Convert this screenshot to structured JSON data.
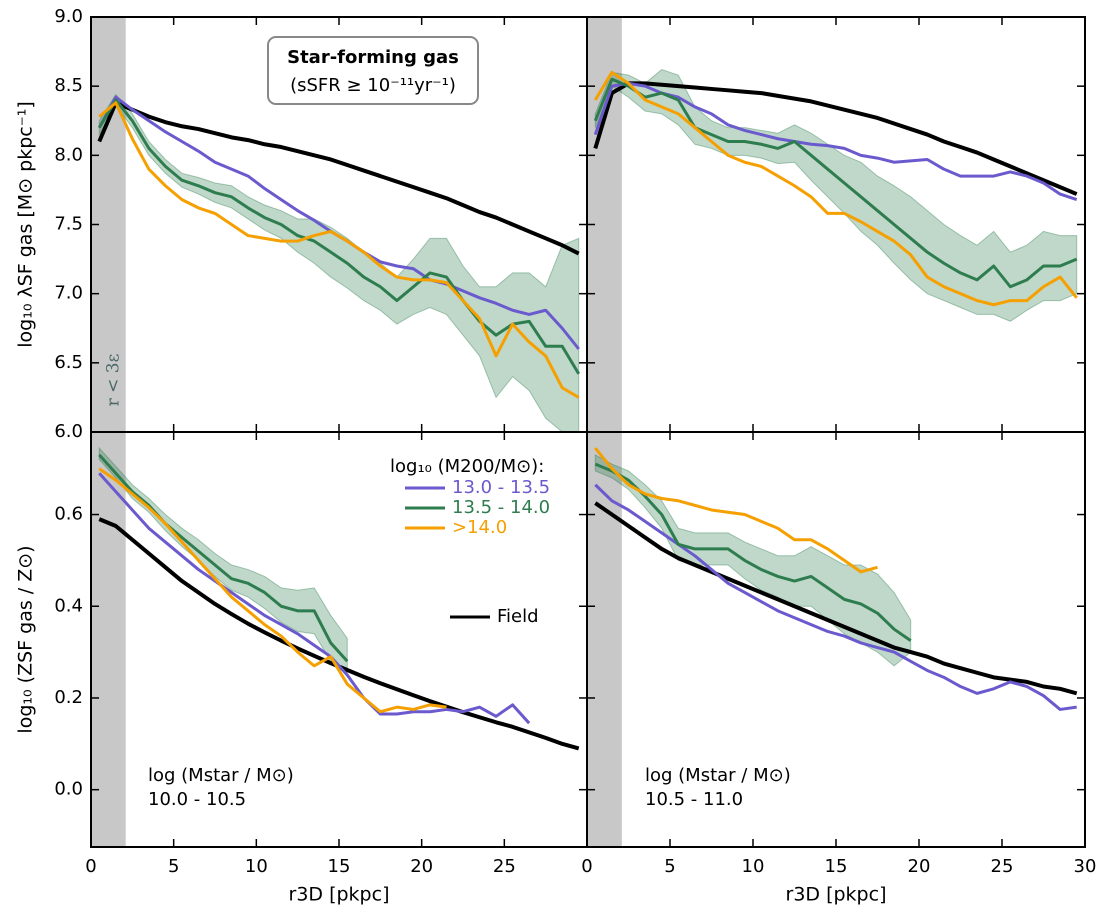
{
  "chart_data": [
    {
      "type": "line",
      "ylabel": "log₁₀ λSF gas [M⊙ pkpc⁻¹]",
      "annotations": [
        "Star-forming gas",
        "(sSFR ≥ 10⁻¹¹yr⁻¹)"
      ],
      "shade_label": "r < 3ε",
      "xlim": [
        0,
        30
      ],
      "ylim": [
        6,
        9
      ],
      "xticks": [
        0,
        5,
        10,
        15,
        20,
        25,
        30
      ],
      "show_xtick_labels": false,
      "yticks": [
        {
          "value": 6,
          "label": "6.0"
        },
        6.5,
        {
          "value": 7,
          "label": "7.0"
        },
        7.5,
        {
          "value": 8,
          "label": "8.0"
        },
        8.5,
        {
          "value": 9,
          "label": "9.0"
        }
      ],
      "show_ytick_labels": true,
      "shaded_xlim": [
        0,
        2.1
      ],
      "shade_color": "#c8c8c8",
      "x": [
        0.5,
        1.5,
        2.5,
        3.5,
        4.5,
        5.5,
        6.5,
        7.5,
        8.5,
        9.5,
        10.5,
        11.5,
        12.5,
        13.5,
        14.5,
        15.5,
        16.5,
        17.5,
        18.5,
        19.5,
        20.5,
        21.5,
        22.5,
        23.5,
        24.5,
        25.5,
        26.5,
        27.5,
        28.5,
        29.5
      ],
      "series": [
        {
          "color": "#000000",
          "values": [
            8.1,
            8.38,
            8.33,
            8.28,
            8.24,
            8.21,
            8.19,
            8.16,
            8.13,
            8.11,
            8.08,
            8.06,
            8.03,
            8.0,
            7.97,
            7.93,
            7.89,
            7.85,
            7.81,
            7.77,
            7.73,
            7.69,
            7.64,
            7.59,
            7.55,
            7.5,
            7.45,
            7.4,
            7.35,
            7.29
          ]
        },
        {
          "color": "#6a5acd",
          "values": [
            8.2,
            8.42,
            8.33,
            8.25,
            8.17,
            8.1,
            8.03,
            7.95,
            7.9,
            7.85,
            7.76,
            7.68,
            7.6,
            7.53,
            7.45,
            7.38,
            7.3,
            7.23,
            7.2,
            7.18,
            7.1,
            7.07,
            7.02,
            6.97,
            6.93,
            6.88,
            6.85,
            6.88,
            6.75,
            6.6
          ]
        },
        {
          "color": "#2e7d4f",
          "values": [
            8.2,
            8.4,
            8.25,
            8.05,
            7.92,
            7.82,
            7.78,
            7.73,
            7.7,
            7.62,
            7.55,
            7.5,
            7.42,
            7.38,
            7.3,
            7.22,
            7.12,
            7.05,
            6.95,
            7.05,
            7.15,
            7.12,
            6.95,
            6.8,
            6.7,
            6.78,
            6.8,
            6.62,
            6.62,
            6.42
          ],
          "lower": [
            8.15,
            8.36,
            8.2,
            8.0,
            7.87,
            7.77,
            7.72,
            7.66,
            7.62,
            7.54,
            7.46,
            7.4,
            7.3,
            7.22,
            7.12,
            7.04,
            6.95,
            6.88,
            6.78,
            6.85,
            6.9,
            6.85,
            6.7,
            6.55,
            6.25,
            6.4,
            6.3,
            6.1,
            6.0,
            5.9
          ],
          "upper": [
            8.25,
            8.44,
            8.3,
            8.1,
            7.97,
            7.87,
            7.84,
            7.8,
            7.78,
            7.7,
            7.64,
            7.6,
            7.54,
            7.54,
            7.48,
            7.4,
            7.3,
            7.22,
            7.12,
            7.25,
            7.4,
            7.4,
            7.2,
            7.05,
            7.05,
            7.15,
            7.15,
            7.05,
            7.35,
            7.4
          ]
        },
        {
          "color": "#f5a000",
          "values": [
            8.28,
            8.38,
            8.12,
            7.9,
            7.78,
            7.68,
            7.62,
            7.58,
            7.5,
            7.42,
            7.4,
            7.38,
            7.38,
            7.42,
            7.45,
            7.38,
            7.3,
            7.2,
            7.12,
            7.1,
            7.1,
            7.08,
            6.95,
            6.82,
            6.55,
            6.78,
            6.65,
            6.55,
            6.32,
            6.25
          ]
        }
      ]
    },
    {
      "type": "line",
      "xlim": [
        0,
        30
      ],
      "ylim": [
        6,
        9
      ],
      "xticks": [
        0,
        5,
        10,
        15,
        20,
        25,
        30
      ],
      "show_xtick_labels": false,
      "yticks": [
        6,
        6.5,
        7,
        7.5,
        8,
        8.5,
        9
      ],
      "show_ytick_labels": false,
      "shaded_xlim": [
        0,
        2.1
      ],
      "shade_color": "#c8c8c8",
      "x": [
        0.5,
        1.5,
        2.5,
        3.5,
        4.5,
        5.5,
        6.5,
        7.5,
        8.5,
        9.5,
        10.5,
        11.5,
        12.5,
        13.5,
        14.5,
        15.5,
        16.5,
        17.5,
        18.5,
        19.5,
        20.5,
        21.5,
        22.5,
        23.5,
        24.5,
        25.5,
        26.5,
        27.5,
        28.5,
        29.5
      ],
      "series": [
        {
          "color": "#000000",
          "values": [
            8.05,
            8.45,
            8.52,
            8.52,
            8.51,
            8.5,
            8.49,
            8.48,
            8.47,
            8.46,
            8.45,
            8.43,
            8.41,
            8.39,
            8.36,
            8.33,
            8.3,
            8.27,
            8.23,
            8.19,
            8.15,
            8.1,
            8.06,
            8.02,
            7.97,
            7.92,
            7.87,
            7.82,
            7.77,
            7.72
          ]
        },
        {
          "color": "#6a5acd",
          "values": [
            8.15,
            8.5,
            8.52,
            8.5,
            8.45,
            8.42,
            8.35,
            8.3,
            8.22,
            8.18,
            8.15,
            8.12,
            8.1,
            8.08,
            8.07,
            8.05,
            8.0,
            7.98,
            7.95,
            7.96,
            7.97,
            7.9,
            7.85,
            7.85,
            7.85,
            7.88,
            7.85,
            7.8,
            7.72,
            7.68
          ]
        },
        {
          "color": "#2e7d4f",
          "values": [
            8.25,
            8.55,
            8.5,
            8.42,
            8.45,
            8.4,
            8.2,
            8.15,
            8.1,
            8.1,
            8.08,
            8.05,
            8.1,
            8.0,
            7.9,
            7.8,
            7.7,
            7.6,
            7.5,
            7.4,
            7.3,
            7.22,
            7.15,
            7.1,
            7.2,
            7.05,
            7.1,
            7.2,
            7.2,
            7.25
          ],
          "lower": [
            8.2,
            8.5,
            8.42,
            8.32,
            8.3,
            8.22,
            8.08,
            8.05,
            8.0,
            8.0,
            7.98,
            7.94,
            7.95,
            7.82,
            7.7,
            7.58,
            7.45,
            7.35,
            7.22,
            7.1,
            7.0,
            6.95,
            6.9,
            6.85,
            6.85,
            6.8,
            6.88,
            6.95,
            6.95,
            7.0
          ],
          "upper": [
            8.3,
            8.6,
            8.58,
            8.52,
            8.62,
            8.58,
            8.35,
            8.25,
            8.2,
            8.2,
            8.18,
            8.16,
            8.22,
            8.16,
            8.08,
            8.0,
            7.95,
            7.85,
            7.78,
            7.7,
            7.6,
            7.5,
            7.42,
            7.35,
            7.45,
            7.3,
            7.35,
            7.45,
            7.42,
            7.42
          ]
        },
        {
          "color": "#f5a000",
          "values": [
            8.4,
            8.6,
            8.52,
            8.4,
            8.35,
            8.3,
            8.2,
            8.1,
            8.0,
            7.95,
            7.92,
            7.85,
            7.78,
            7.7,
            7.58,
            7.58,
            7.52,
            7.45,
            7.38,
            7.28,
            7.12,
            7.05,
            7.0,
            6.95,
            6.92,
            6.95,
            6.95,
            7.05,
            7.12,
            6.97
          ]
        }
      ]
    },
    {
      "type": "line",
      "xlabel": "r3D [pkpc]",
      "ylabel": "log₁₀ (ZSF gas / Z⊙)",
      "annotations": [
        "log (Mstar / M⊙)",
        "10.0 - 10.5"
      ],
      "legend_title": "log₁₀ (M200/M⊙):",
      "xlim": [
        0,
        30
      ],
      "ylim": [
        -0.125,
        0.78
      ],
      "xticks": [
        0,
        5,
        10,
        15,
        20,
        25
      ],
      "show_xtick_labels": true,
      "yticks": [
        {
          "value": 0,
          "label": "0.0"
        },
        0.2,
        0.4,
        0.6
      ],
      "show_ytick_labels": true,
      "shaded_xlim": [
        0,
        2.1
      ],
      "shade_color": "#c8c8c8",
      "x": [
        0.5,
        1.5,
        2.5,
        3.5,
        4.5,
        5.5,
        6.5,
        7.5,
        8.5,
        9.5,
        10.5,
        11.5,
        12.5,
        13.5,
        14.5,
        15.5,
        16.5,
        17.5,
        18.5,
        19.5,
        20.5,
        21.5,
        22.5,
        23.5,
        24.5,
        25.5,
        26.5,
        27.5,
        28.5,
        29.5
      ],
      "series": [
        {
          "name": "Field",
          "color": "#000000",
          "values": [
            0.59,
            0.575,
            0.545,
            0.515,
            0.485,
            0.455,
            0.43,
            0.405,
            0.383,
            0.362,
            0.343,
            0.325,
            0.308,
            0.292,
            0.276,
            0.261,
            0.246,
            0.232,
            0.219,
            0.206,
            0.193,
            0.181,
            0.169,
            0.158,
            0.147,
            0.137,
            0.125,
            0.113,
            0.1,
            0.09
          ]
        },
        {
          "name": "13.0 - 13.5",
          "color": "#6a5acd",
          "values": [
            0.69,
            0.65,
            0.61,
            0.57,
            0.54,
            0.51,
            0.48,
            0.455,
            0.43,
            0.405,
            0.38,
            0.36,
            0.34,
            0.315,
            0.29,
            0.25,
            0.2,
            0.165,
            0.165,
            0.17,
            0.17,
            0.175,
            0.17,
            0.18,
            0.16,
            0.185,
            0.145,
            null,
            null,
            null
          ]
        },
        {
          "name": "13.5 - 14.0",
          "color": "#2e7d4f",
          "values": [
            0.73,
            0.69,
            0.65,
            0.62,
            0.58,
            0.55,
            0.52,
            0.49,
            0.46,
            0.45,
            0.43,
            0.4,
            0.39,
            0.39,
            0.32,
            0.28,
            null,
            null,
            null,
            null,
            null,
            null,
            null,
            null,
            null,
            null,
            null,
            null,
            null,
            null
          ],
          "lower": [
            0.72,
            0.68,
            0.635,
            0.605,
            0.565,
            0.53,
            0.5,
            0.465,
            0.435,
            0.42,
            0.395,
            0.365,
            0.345,
            0.34,
            0.28,
            0.25,
            null,
            null,
            null,
            null,
            null,
            null,
            null,
            null,
            null,
            null,
            null,
            null,
            null,
            null
          ],
          "upper": [
            0.745,
            0.705,
            0.665,
            0.635,
            0.6,
            0.57,
            0.545,
            0.515,
            0.49,
            0.48,
            0.465,
            0.44,
            0.435,
            0.44,
            0.38,
            0.33,
            null,
            null,
            null,
            null,
            null,
            null,
            null,
            null,
            null,
            null,
            null,
            null,
            null,
            null
          ]
        },
        {
          "name": ">14.0",
          "color": "#f5a000",
          "values": [
            0.7,
            0.675,
            0.645,
            0.615,
            0.58,
            0.54,
            0.5,
            0.46,
            0.42,
            0.39,
            0.36,
            0.335,
            0.3,
            0.27,
            0.29,
            0.23,
            0.2,
            0.17,
            0.18,
            0.175,
            0.185,
            0.18,
            null,
            null,
            null,
            null,
            null,
            null,
            null,
            null
          ]
        }
      ]
    },
    {
      "type": "line",
      "xlabel": "r3D [pkpc]",
      "annotations": [
        "log (Mstar / M⊙)",
        "10.5 - 11.0"
      ],
      "xlim": [
        0,
        30
      ],
      "ylim": [
        -0.125,
        0.78
      ],
      "xticks": [
        0,
        5,
        10,
        15,
        20,
        25,
        30
      ],
      "show_xtick_labels": true,
      "yticks": [
        0,
        0.2,
        0.4,
        0.6
      ],
      "show_ytick_labels": false,
      "shaded_xlim": [
        0,
        2.1
      ],
      "shade_color": "#c8c8c8",
      "x": [
        0.5,
        1.5,
        2.5,
        3.5,
        4.5,
        5.5,
        6.5,
        7.5,
        8.5,
        9.5,
        10.5,
        11.5,
        12.5,
        13.5,
        14.5,
        15.5,
        16.5,
        17.5,
        18.5,
        19.5,
        20.5,
        21.5,
        22.5,
        23.5,
        24.5,
        25.5,
        26.5,
        27.5,
        28.5,
        29.5
      ],
      "series": [
        {
          "color": "#000000",
          "values": [
            0.625,
            0.6,
            0.575,
            0.55,
            0.525,
            0.505,
            0.49,
            0.475,
            0.46,
            0.445,
            0.43,
            0.415,
            0.4,
            0.385,
            0.37,
            0.355,
            0.34,
            0.325,
            0.31,
            0.3,
            0.29,
            0.275,
            0.265,
            0.255,
            0.245,
            0.24,
            0.235,
            0.225,
            0.22,
            0.21
          ]
        },
        {
          "color": "#6a5acd",
          "values": [
            0.665,
            0.63,
            0.61,
            0.585,
            0.56,
            0.535,
            0.51,
            0.48,
            0.45,
            0.43,
            0.41,
            0.39,
            0.375,
            0.36,
            0.345,
            0.335,
            0.32,
            0.31,
            0.3,
            0.28,
            0.26,
            0.245,
            0.225,
            0.21,
            0.22,
            0.235,
            0.225,
            0.205,
            0.175,
            0.18
          ]
        },
        {
          "color": "#2e7d4f",
          "values": [
            0.71,
            0.695,
            0.675,
            0.64,
            0.6,
            0.535,
            0.525,
            0.525,
            0.525,
            0.5,
            0.48,
            0.465,
            0.455,
            0.465,
            0.44,
            0.415,
            0.405,
            0.385,
            0.35,
            0.325,
            null,
            null,
            null,
            null,
            null,
            null,
            null,
            null,
            null,
            null
          ],
          "lower": [
            0.695,
            0.68,
            0.655,
            0.615,
            0.57,
            0.5,
            0.49,
            0.49,
            0.49,
            0.46,
            0.435,
            0.42,
            0.4,
            0.4,
            0.37,
            0.34,
            0.32,
            0.3,
            0.27,
            0.3,
            null,
            null,
            null,
            null,
            null,
            null,
            null,
            null,
            null,
            null
          ],
          "upper": [
            0.73,
            0.71,
            0.695,
            0.665,
            0.63,
            0.57,
            0.56,
            0.56,
            0.56,
            0.54,
            0.525,
            0.51,
            0.51,
            0.53,
            0.51,
            0.49,
            0.49,
            0.47,
            0.43,
            0.37,
            null,
            null,
            null,
            null,
            null,
            null,
            null,
            null,
            null,
            null
          ]
        },
        {
          "color": "#f5a000",
          "values": [
            0.745,
            0.7,
            0.665,
            0.645,
            0.635,
            0.63,
            0.62,
            0.61,
            0.605,
            0.6,
            0.585,
            0.57,
            0.545,
            0.545,
            0.525,
            0.5,
            0.475,
            0.485,
            null,
            null,
            null,
            null,
            null,
            null,
            null,
            null,
            null,
            null,
            null,
            null
          ]
        }
      ]
    }
  ]
}
